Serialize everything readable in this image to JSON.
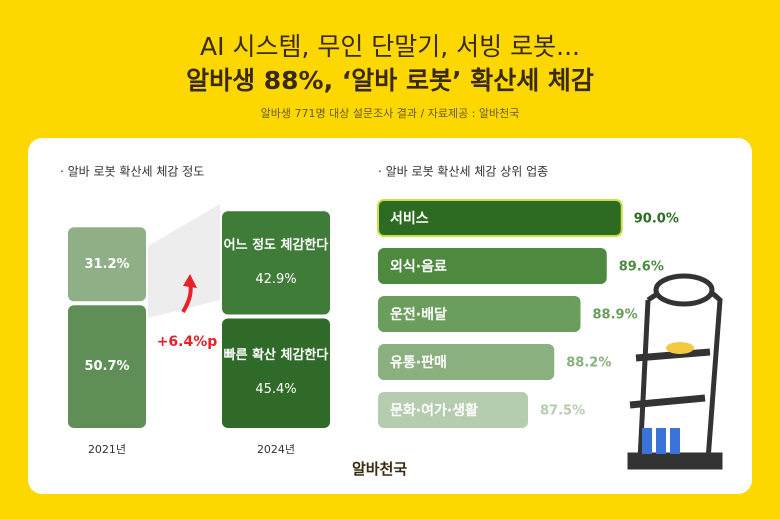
{
  "header": {
    "title_line1": "AI 시스템, 무인 단말기, 서빙 로봇...",
    "title_line2": "알바생 88%, ‘알바 로봇’ 확산세 체감",
    "subtitle": "알바생 771명 대상 설문조사 결과 / 자료제공 : 알바천국"
  },
  "chart_data": [
    {
      "type": "stacked_bar",
      "title": "· 알바 로봇 확산세 체감 정도",
      "categories": [
        "2021년",
        "2024년"
      ],
      "series": [
        {
          "name": "빠른 확산 체감한다",
          "colors": [
            "#5f8f57",
            "#2f6a28"
          ],
          "values": [
            50.7,
            45.4
          ],
          "value_labels": [
            "50.7%",
            "45.4%"
          ]
        },
        {
          "name": "어느 정도 체감한다",
          "colors": [
            "#8fb087",
            "#3f7c37"
          ],
          "values": [
            31.2,
            42.9
          ],
          "value_labels": [
            "31.2%",
            "42.9%"
          ]
        }
      ],
      "ylim": [
        0,
        100
      ],
      "annotation": "+6.4%p"
    },
    {
      "type": "hbar",
      "title": "· 알바 로봇 확산세 체감 상위 업종",
      "categories": [
        "서비스",
        "외식·음료",
        "운전·배달",
        "유통·판매",
        "문화·여가·생활"
      ],
      "values": [
        90.0,
        89.6,
        88.9,
        88.2,
        87.5
      ],
      "value_labels": [
        "90.0%",
        "89.6%",
        "88.9%",
        "88.2%",
        "87.5%"
      ],
      "colors": [
        "#2e6b22",
        "#4d8a40",
        "#6b9d5c",
        "#8bb07f",
        "#b6ccae"
      ],
      "xlim": [
        83.5,
        91.5
      ]
    }
  ],
  "footer": {
    "logo": "알바천국"
  }
}
